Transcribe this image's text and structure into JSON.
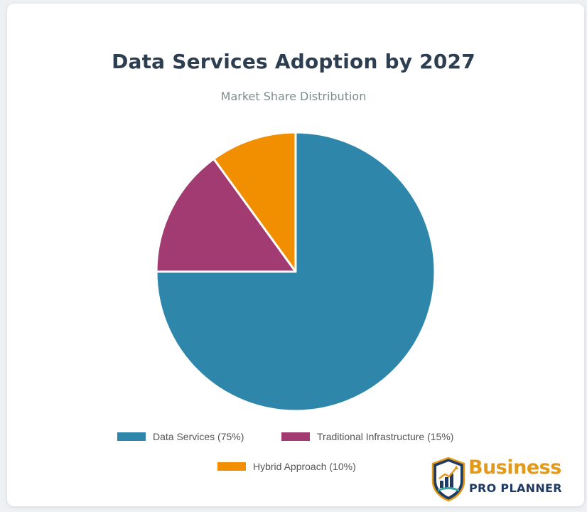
{
  "chart_data": {
    "type": "pie",
    "title": "Data Services Adoption by 2027",
    "subtitle": "Market Share Distribution",
    "categories": [
      "Data Services",
      "Traditional Infrastructure",
      "Hybrid Approach"
    ],
    "values": [
      75,
      15,
      10
    ],
    "unit": "%",
    "colors": [
      "#2e86ab",
      "#a23b72",
      "#f18f01"
    ],
    "legend_labels": [
      "Data Services (75%)",
      "Traditional Infrastructure (15%)",
      "Hybrid Approach (10%)"
    ],
    "legend_position": "bottom",
    "slice_border_color": "#ffffff"
  },
  "logo": {
    "word1": "Business",
    "word2": "PRO PLANNER",
    "icon": "shield-chart-icon",
    "colors": {
      "primary": "#1f3b63",
      "accent": "#e39a1a"
    }
  }
}
